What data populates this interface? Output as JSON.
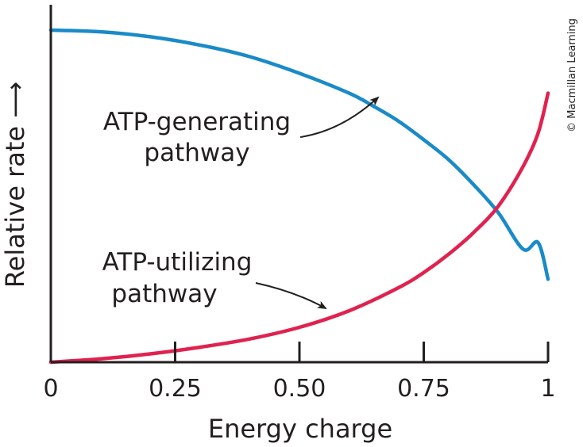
{
  "chart_data": {
    "type": "line",
    "xlabel": "Energy charge",
    "ylabel": "Relative rate ⟶",
    "xlim": [
      0,
      1
    ],
    "ylim": [
      0,
      1
    ],
    "x_ticks": [
      {
        "value": 0,
        "label": "0"
      },
      {
        "value": 0.25,
        "label": "0.25"
      },
      {
        "value": 0.5,
        "label": "0.50"
      },
      {
        "value": 0.75,
        "label": "0.75"
      },
      {
        "value": 1,
        "label": "1"
      }
    ],
    "y_ticks_shown": false,
    "grid": false,
    "series": [
      {
        "color": "#1a8ac9",
        "x": [
          0,
          0.1,
          0.2,
          0.3,
          0.4,
          0.5,
          0.6,
          0.65,
          0.7,
          0.75,
          0.8,
          0.85,
          0.9,
          0.95,
          0.98,
          1.0
        ],
        "y": [
          1.0,
          0.995,
          0.98,
          0.955,
          0.92,
          0.87,
          0.81,
          0.77,
          0.725,
          0.67,
          0.61,
          0.535,
          0.45,
          0.34,
          0.25,
          0.25
        ]
      },
      {
        "color": "#e0224f",
        "x": [
          0,
          0.1,
          0.2,
          0.3,
          0.4,
          0.5,
          0.6,
          0.7,
          0.75,
          0.8,
          0.85,
          0.9,
          0.95,
          0.98,
          1.0
        ],
        "y": [
          0.0,
          0.01,
          0.025,
          0.045,
          0.07,
          0.105,
          0.155,
          0.225,
          0.27,
          0.325,
          0.39,
          0.47,
          0.59,
          0.69,
          0.81
        ]
      }
    ],
    "annotations": [
      {
        "lines": [
          "ATP-generating",
          "pathway"
        ],
        "points_to_series": 0
      },
      {
        "lines": [
          "ATP-utilizing",
          "pathway"
        ],
        "points_to_series": 1
      }
    ]
  },
  "credit": "© Macmillan Learning"
}
